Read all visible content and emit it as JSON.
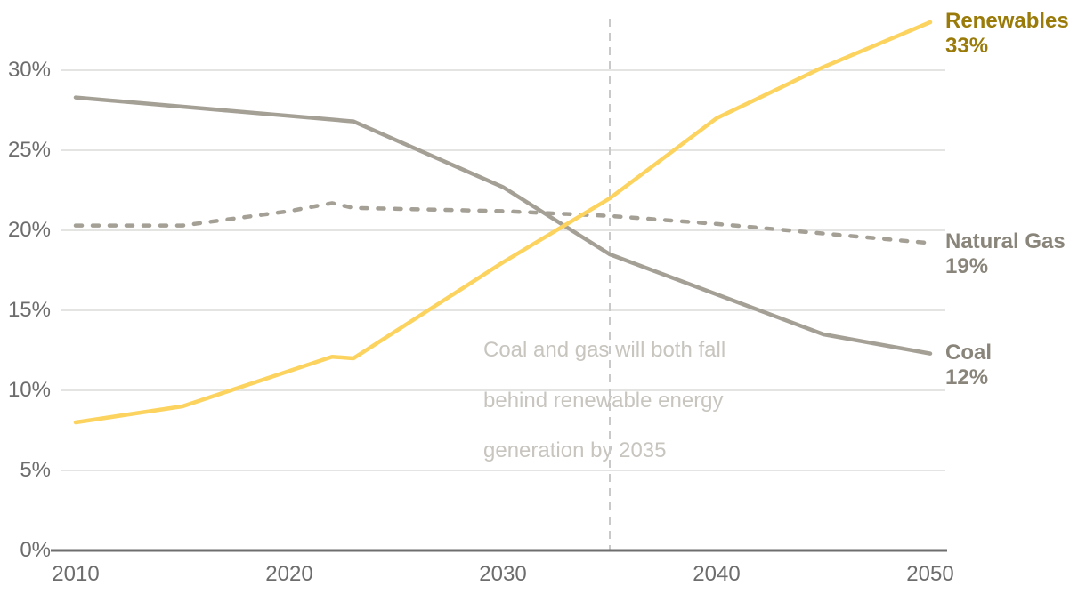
{
  "chart_data": {
    "type": "line",
    "xlim": [
      2010,
      2050
    ],
    "ylim": [
      0,
      33
    ],
    "grid": "horizontal",
    "x_ticks": [
      {
        "value": 2010,
        "label": "2010"
      },
      {
        "value": 2020,
        "label": "2020"
      },
      {
        "value": 2030,
        "label": "2030"
      },
      {
        "value": 2040,
        "label": "2040"
      },
      {
        "value": 2050,
        "label": "2050"
      }
    ],
    "y_ticks": [
      {
        "value": 0,
        "label": "0%"
      },
      {
        "value": 5,
        "label": "5%"
      },
      {
        "value": 10,
        "label": "10%"
      },
      {
        "value": 15,
        "label": "15%"
      },
      {
        "value": 20,
        "label": "20%"
      },
      {
        "value": 25,
        "label": "25%"
      },
      {
        "value": 30,
        "label": "30%"
      }
    ],
    "series": [
      {
        "name": "Renewables",
        "style": "solid",
        "color": "#FBD35E",
        "label_color": "#9A7B0A",
        "end_label": "Renewables",
        "end_value_label": "33%",
        "x": [
          2010,
          2015,
          2022,
          2023,
          2030,
          2035,
          2040,
          2045,
          2050
        ],
        "y": [
          8,
          9,
          12.1,
          12,
          18,
          22,
          27,
          30.2,
          33
        ]
      },
      {
        "name": "Natural Gas",
        "style": "dashed",
        "color": "#A5A096",
        "label_color": "#8A857B",
        "end_label": "Natural Gas",
        "end_value_label": "19%",
        "x": [
          2010,
          2015,
          2020,
          2022,
          2023,
          2030,
          2035,
          2040,
          2045,
          2050
        ],
        "y": [
          20.3,
          20.3,
          21.2,
          21.7,
          21.4,
          21.2,
          20.9,
          20.4,
          19.8,
          19.2
        ]
      },
      {
        "name": "Coal",
        "style": "solid",
        "color": "#A5A096",
        "label_color": "#8A857B",
        "end_label": "Coal",
        "end_value_label": "12%",
        "x": [
          2010,
          2023,
          2030,
          2035,
          2040,
          2045,
          2050
        ],
        "y": [
          28.3,
          26.8,
          22.7,
          18.5,
          16,
          13.5,
          12.3
        ]
      }
    ],
    "reference_line": {
      "x": 2035,
      "style": "dashed",
      "color": "#C9C9C9"
    },
    "annotation": {
      "lines": [
        "Coal and gas will both fall",
        "behind renewable energy",
        "generation by 2035"
      ],
      "color": "#C8C5BF"
    },
    "axis_color": "#6E6E6E",
    "grid_color": "#DCDCDA",
    "tick_text_color": "#6D6D6D"
  }
}
